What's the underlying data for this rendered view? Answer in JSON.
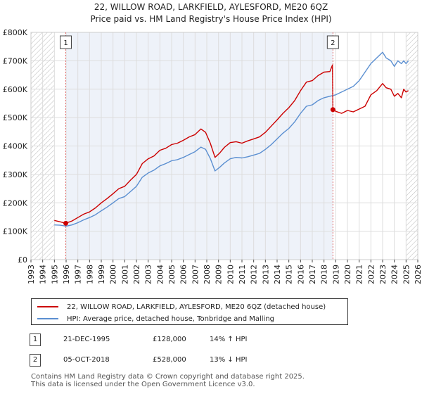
{
  "chart_data": {
    "type": "line",
    "title": "22, WILLOW ROAD, LARKFIELD, AYLESFORD, ME20 6QZ",
    "subtitle": "Price paid vs. HM Land Registry's House Price Index (HPI)",
    "xlabel": "",
    "ylabel": "",
    "xlim": [
      1993,
      2026
    ],
    "ylim": [
      0,
      800000
    ],
    "x_ticks": [
      1993,
      1994,
      1995,
      1996,
      1997,
      1998,
      1999,
      2000,
      2001,
      2002,
      2003,
      2004,
      2005,
      2006,
      2007,
      2008,
      2009,
      2010,
      2011,
      2012,
      2013,
      2014,
      2015,
      2016,
      2017,
      2018,
      2019,
      2020,
      2021,
      2022,
      2023,
      2024,
      2025,
      2026
    ],
    "y_ticks": [
      {
        "value": 0,
        "label": "£0"
      },
      {
        "value": 100000,
        "label": "£100K"
      },
      {
        "value": 200000,
        "label": "£200K"
      },
      {
        "value": 300000,
        "label": "£300K"
      },
      {
        "value": 400000,
        "label": "£400K"
      },
      {
        "value": 500000,
        "label": "£500K"
      },
      {
        "value": 600000,
        "label": "£600K"
      },
      {
        "value": 700000,
        "label": "£700K"
      },
      {
        "value": 800000,
        "label": "£800K"
      }
    ],
    "grid": true,
    "hatched_ranges": [
      [
        1993,
        1995
      ],
      [
        2025,
        2026
      ]
    ],
    "shaded_range": [
      1995.97,
      2018.76
    ],
    "series": [
      {
        "name": "22, WILLOW ROAD, LARKFIELD, AYLESFORD, ME20 6QZ (detached house)",
        "color": "#cc0000",
        "x": [
          1995.0,
          1995.5,
          1995.97,
          1996.5,
          1997,
          1997.5,
          1998,
          1998.5,
          1999,
          1999.5,
          2000,
          2000.5,
          2001,
          2001.5,
          2002,
          2002.5,
          2003,
          2003.5,
          2004,
          2004.5,
          2005,
          2005.5,
          2006,
          2006.5,
          2007,
          2007.5,
          2007.9,
          2008.3,
          2008.7,
          2009.1,
          2009.5,
          2010,
          2010.5,
          2011,
          2011.5,
          2012,
          2012.5,
          2013,
          2013.5,
          2014,
          2014.5,
          2015,
          2015.5,
          2016,
          2016.5,
          2017,
          2017.5,
          2018,
          2018.5,
          2018.72,
          2018.76,
          2019,
          2019.5,
          2020,
          2020.5,
          2021,
          2021.5,
          2022,
          2022.5,
          2023,
          2023.3,
          2023.7,
          2024,
          2024.3,
          2024.6,
          2024.8,
          2025.0,
          2025.2
        ],
        "values": [
          138000,
          133000,
          128000,
          136000,
          148000,
          160000,
          168000,
          182000,
          200000,
          215000,
          232000,
          250000,
          258000,
          280000,
          300000,
          338000,
          355000,
          365000,
          385000,
          392000,
          405000,
          410000,
          420000,
          432000,
          440000,
          460000,
          448000,
          410000,
          360000,
          375000,
          395000,
          412000,
          415000,
          410000,
          418000,
          425000,
          432000,
          448000,
          470000,
          492000,
          515000,
          535000,
          560000,
          595000,
          625000,
          630000,
          648000,
          660000,
          662000,
          685000,
          528000,
          522000,
          515000,
          525000,
          520000,
          530000,
          540000,
          580000,
          595000,
          620000,
          605000,
          600000,
          575000,
          585000,
          570000,
          600000,
          590000,
          595000
        ]
      },
      {
        "name": "HPI: Average price, detached house, Tonbridge and Malling",
        "color": "#5b8fd1",
        "x": [
          1995.0,
          1995.5,
          1996,
          1996.5,
          1997,
          1997.5,
          1998,
          1998.5,
          1999,
          1999.5,
          2000,
          2000.5,
          2001,
          2001.5,
          2002,
          2002.5,
          2003,
          2003.5,
          2004,
          2004.5,
          2005,
          2005.5,
          2006,
          2006.5,
          2007,
          2007.5,
          2007.9,
          2008.3,
          2008.7,
          2009.1,
          2009.5,
          2010,
          2010.5,
          2011,
          2011.5,
          2012,
          2012.5,
          2013,
          2013.5,
          2014,
          2014.5,
          2015,
          2015.5,
          2016,
          2016.5,
          2017,
          2017.5,
          2018,
          2018.5,
          2019,
          2019.5,
          2020,
          2020.5,
          2021,
          2021.5,
          2022,
          2022.5,
          2023,
          2023.3,
          2023.7,
          2024,
          2024.3,
          2024.6,
          2024.8,
          2025.0,
          2025.2
        ],
        "values": [
          122000,
          121000,
          118000,
          122000,
          130000,
          140000,
          148000,
          158000,
          172000,
          185000,
          200000,
          215000,
          222000,
          240000,
          258000,
          290000,
          305000,
          315000,
          330000,
          338000,
          348000,
          352000,
          360000,
          370000,
          380000,
          396000,
          388000,
          356000,
          312000,
          325000,
          340000,
          355000,
          360000,
          358000,
          362000,
          368000,
          374000,
          388000,
          405000,
          425000,
          445000,
          462000,
          485000,
          515000,
          540000,
          545000,
          560000,
          570000,
          575000,
          580000,
          590000,
          600000,
          610000,
          630000,
          660000,
          690000,
          710000,
          730000,
          710000,
          700000,
          680000,
          700000,
          690000,
          700000,
          690000,
          700000
        ]
      }
    ],
    "markers": [
      {
        "label": "1",
        "x": 1995.97,
        "value": 128000
      },
      {
        "label": "2",
        "x": 2018.76,
        "value": 528000
      }
    ]
  },
  "legend": {
    "items": [
      {
        "label": "22, WILLOW ROAD, LARKFIELD, AYLESFORD, ME20 6QZ (detached house)",
        "color": "#cc0000"
      },
      {
        "label": "HPI: Average price, detached house, Tonbridge and Malling",
        "color": "#5b8fd1"
      }
    ]
  },
  "sales": [
    {
      "badge": "1",
      "date": "21-DEC-1995",
      "price": "£128,000",
      "hpi": "14% ↑ HPI"
    },
    {
      "badge": "2",
      "date": "05-OCT-2018",
      "price": "£528,000",
      "hpi": "13% ↓ HPI"
    }
  ],
  "footer": {
    "line1": "Contains HM Land Registry data © Crown copyright and database right 2025.",
    "line2": "This data is licensed under the Open Government Licence v3.0."
  }
}
